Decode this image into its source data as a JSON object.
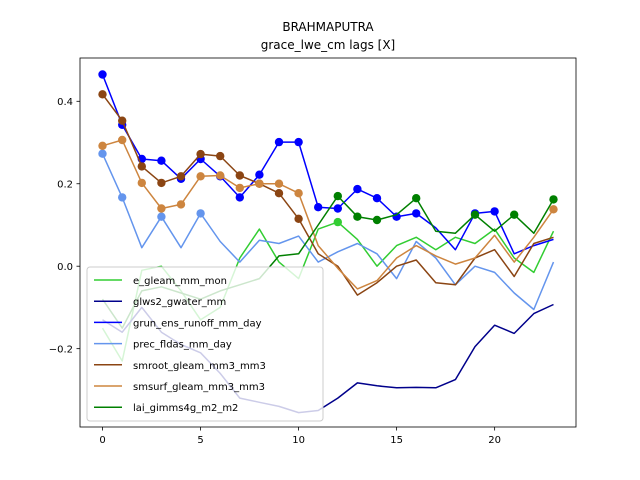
{
  "chart_data": {
    "type": "line",
    "title": "BRAHMAPUTRA",
    "subtitle": "grace_lwe_cm lags [X]",
    "xlabel": "",
    "ylabel": "",
    "xlim": [
      -1.15,
      24.15
    ],
    "ylim": [
      -0.39,
      0.505
    ],
    "xticks": [
      0,
      5,
      10,
      15,
      20
    ],
    "yticks": [
      -0.2,
      0.0,
      0.2,
      0.4
    ],
    "ytick_labels": [
      "−0.2",
      "0.0",
      "0.2",
      "0.4"
    ],
    "legend_position": "lower-left",
    "grid": false,
    "x": [
      0,
      1,
      2,
      3,
      4,
      5,
      6,
      7,
      8,
      9,
      10,
      11,
      12,
      13,
      14,
      15,
      16,
      17,
      18,
      19,
      20,
      21,
      22,
      23
    ],
    "series": [
      {
        "name": "e_gleam_mm_mon",
        "color": "#32cd32",
        "values": [
          -0.15,
          -0.23,
          -0.01,
          0.0,
          -0.06,
          -0.13,
          -0.1,
          0.02,
          0.09,
          0.01,
          -0.03,
          0.09,
          0.107,
          0.065,
          0.0,
          0.05,
          0.07,
          0.04,
          0.07,
          0.055,
          0.09,
          0.02,
          -0.015,
          0.085
        ],
        "markers": [
          12
        ]
      },
      {
        "name": "glws2_gwater_mm",
        "color": "#00008b",
        "values": [
          -0.13,
          -0.16,
          -0.1,
          -0.16,
          -0.19,
          -0.21,
          -0.26,
          -0.32,
          -0.33,
          -0.34,
          -0.355,
          -0.35,
          -0.32,
          -0.283,
          -0.29,
          -0.295,
          -0.294,
          -0.295,
          -0.275,
          -0.195,
          -0.143,
          -0.163,
          -0.115,
          -0.093
        ],
        "markers": []
      },
      {
        "name": "grun_ens_runoff_mm_day",
        "color": "#0000ff",
        "values": [
          0.465,
          0.343,
          0.26,
          0.256,
          0.212,
          0.26,
          0.218,
          0.167,
          0.222,
          0.301,
          0.301,
          0.143,
          0.14,
          0.187,
          0.165,
          0.12,
          0.128,
          0.093,
          0.04,
          0.128,
          0.133,
          0.03,
          0.05,
          0.065
        ],
        "markers": [
          0,
          1,
          2,
          3,
          4,
          5,
          6,
          7,
          8,
          9,
          10,
          11,
          12,
          13,
          14,
          15,
          16,
          19,
          20
        ]
      },
      {
        "name": "prec_fldas_mm_day",
        "color": "#6495ed",
        "values": [
          0.273,
          0.167,
          0.045,
          0.12,
          0.045,
          0.128,
          0.06,
          0.01,
          0.063,
          0.055,
          0.073,
          0.01,
          0.035,
          0.055,
          0.03,
          -0.03,
          0.06,
          0.02,
          -0.045,
          0.0,
          -0.015,
          -0.065,
          -0.105,
          0.01
        ],
        "markers": [
          0,
          1,
          3,
          5
        ]
      },
      {
        "name": "smroot_gleam_mm3_mm3",
        "color": "#8b4513",
        "values": [
          0.417,
          0.353,
          0.242,
          0.202,
          0.218,
          0.272,
          0.267,
          0.22,
          0.2,
          0.177,
          0.115,
          0.03,
          0.0,
          -0.07,
          -0.04,
          0.0,
          0.015,
          -0.04,
          -0.045,
          0.02,
          0.04,
          -0.025,
          0.055,
          0.07
        ],
        "markers": [
          0,
          1,
          2,
          3,
          4,
          5,
          6,
          7,
          8,
          9,
          10
        ]
      },
      {
        "name": "smsurf_gleam_mm3_mm3",
        "color": "#cd853f",
        "values": [
          0.292,
          0.306,
          0.202,
          0.14,
          0.15,
          0.218,
          0.22,
          0.19,
          0.2,
          0.2,
          0.177,
          0.05,
          -0.005,
          -0.055,
          -0.035,
          0.02,
          0.05,
          0.025,
          0.005,
          0.02,
          0.075,
          0.01,
          0.07,
          0.138
        ],
        "markers": [
          0,
          1,
          2,
          3,
          4,
          5,
          6,
          7,
          8,
          9,
          10,
          23
        ]
      },
      {
        "name": "lai_gimms4g_m2_m2",
        "color": "#008000",
        "values": [
          -0.08,
          -0.15,
          -0.06,
          -0.05,
          -0.065,
          -0.08,
          -0.06,
          -0.045,
          -0.03,
          0.025,
          0.03,
          0.1,
          0.17,
          0.12,
          0.112,
          0.125,
          0.165,
          0.085,
          0.08,
          0.125,
          0.085,
          0.125,
          0.08,
          0.162
        ],
        "markers": [
          12,
          13,
          14,
          16,
          19,
          21,
          23
        ]
      }
    ]
  }
}
